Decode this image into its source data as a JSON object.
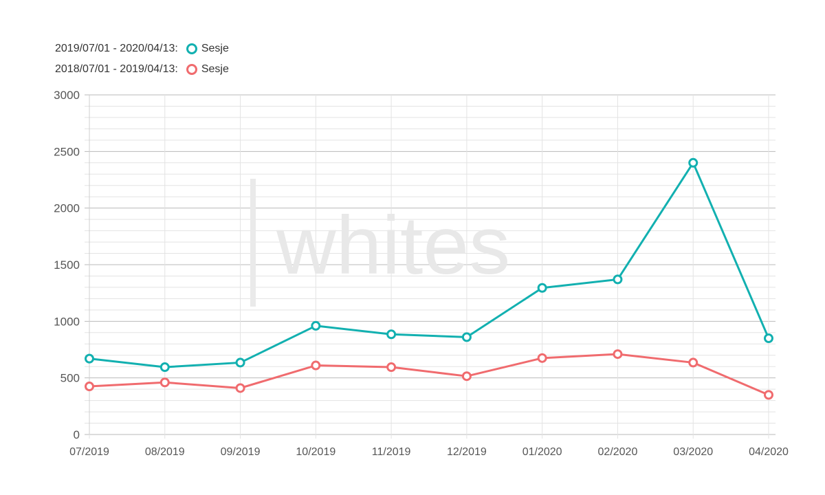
{
  "legend": [
    {
      "range": "2019/07/01 - 2020/04/13:",
      "label": "Sesje",
      "color": "#12b0b0"
    },
    {
      "range": "2018/07/01 - 2019/04/13:",
      "label": "Sesje",
      "color": "#f06b6e"
    }
  ],
  "watermark": "whites",
  "chart_data": {
    "type": "line",
    "categories": [
      "07/2019",
      "08/2019",
      "09/2019",
      "10/2019",
      "11/2019",
      "12/2019",
      "01/2020",
      "02/2020",
      "03/2020",
      "04/2020"
    ],
    "series": [
      {
        "name": "Sesje",
        "color": "#12b0b0",
        "values": [
          670,
          595,
          635,
          960,
          885,
          860,
          1295,
          1370,
          2400,
          850
        ]
      },
      {
        "name": "Sesje",
        "color": "#f06b6e",
        "values": [
          425,
          460,
          410,
          610,
          595,
          515,
          675,
          710,
          635,
          350
        ]
      }
    ],
    "y_ticks": [
      0,
      500,
      1000,
      1500,
      2000,
      2500,
      3000
    ],
    "ylim": [
      0,
      3000
    ],
    "grid": true,
    "legend_position": "top-left"
  }
}
